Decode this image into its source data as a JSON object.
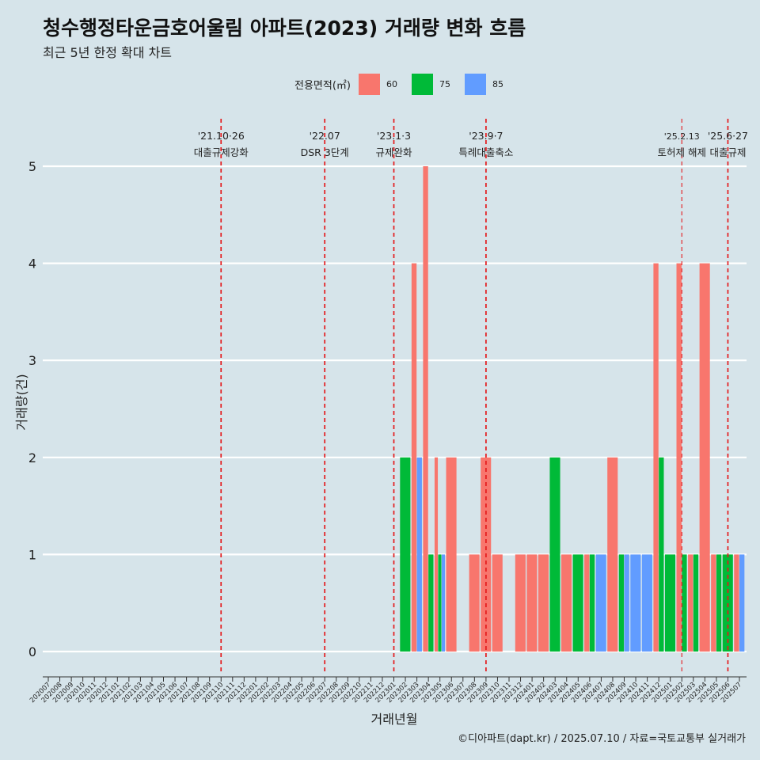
{
  "chart_data": {
    "type": "bar",
    "title": "청수행정타운금호어울림 아파트(2023) 거래량 변화 흐름",
    "subtitle": "최근 5년 한정 확대 차트",
    "xlabel": "거래년월",
    "ylabel": "거래량(건)",
    "ylim": [
      0,
      5
    ],
    "yticks": [
      "0",
      "1",
      "2",
      "3",
      "4",
      "5"
    ],
    "legend": {
      "title": "전용면적(㎡)",
      "position": "top",
      "items": [
        {
          "label": "60",
          "color": "#f8766d"
        },
        {
          "label": "75",
          "color": "#00ba38"
        },
        {
          "label": "85",
          "color": "#619cff"
        }
      ]
    },
    "categories": [
      "202007",
      "202008",
      "202009",
      "202010",
      "202011",
      "202012",
      "202101",
      "202102",
      "202103",
      "202104",
      "202105",
      "202106",
      "202107",
      "202108",
      "202109",
      "202110",
      "202111",
      "202112",
      "202201",
      "202202",
      "202203",
      "202204",
      "202205",
      "202206",
      "202207",
      "202208",
      "202209",
      "202210",
      "202211",
      "202212",
      "202301",
      "202302",
      "202303",
      "202304",
      "202305",
      "202306",
      "202307",
      "202308",
      "202309",
      "202310",
      "202311",
      "202312",
      "202401",
      "202402",
      "202403",
      "202404",
      "202405",
      "202406",
      "202407",
      "202408",
      "202409",
      "202410",
      "202411",
      "202412",
      "202501",
      "202502",
      "202503",
      "202504",
      "202505",
      "202506",
      "202507"
    ],
    "series": [
      {
        "name": "60",
        "color": "#f8766d",
        "values": [
          0,
          0,
          0,
          0,
          0,
          0,
          0,
          0,
          0,
          0,
          0,
          0,
          0,
          0,
          0,
          0,
          0,
          0,
          0,
          0,
          0,
          0,
          0,
          0,
          0,
          0,
          0,
          0,
          0,
          0,
          0,
          0,
          4,
          5,
          2,
          2,
          0,
          1,
          2,
          1,
          0,
          1,
          1,
          1,
          0,
          1,
          0,
          1,
          0,
          2,
          0,
          0,
          0,
          4,
          0,
          4,
          1,
          4,
          1,
          0,
          1
        ]
      },
      {
        "name": "75",
        "color": "#00ba38",
        "values": [
          0,
          0,
          0,
          0,
          0,
          0,
          0,
          0,
          0,
          0,
          0,
          0,
          0,
          0,
          0,
          0,
          0,
          0,
          0,
          0,
          0,
          0,
          0,
          0,
          0,
          0,
          0,
          0,
          0,
          0,
          0,
          2,
          0,
          1,
          1,
          0,
          0,
          0,
          0,
          0,
          0,
          0,
          0,
          0,
          2,
          0,
          1,
          1,
          0,
          0,
          1,
          0,
          0,
          2,
          1,
          1,
          1,
          0,
          1,
          1,
          0
        ]
      },
      {
        "name": "85",
        "color": "#619cff",
        "values": [
          0,
          0,
          0,
          0,
          0,
          0,
          0,
          0,
          0,
          0,
          0,
          0,
          0,
          0,
          0,
          0,
          0,
          0,
          0,
          0,
          0,
          0,
          0,
          0,
          0,
          0,
          0,
          0,
          0,
          0,
          0,
          0,
          2,
          0,
          1,
          0,
          0,
          0,
          0,
          0,
          0,
          0,
          0,
          0,
          0,
          0,
          0,
          0,
          1,
          0,
          1,
          1,
          1,
          0,
          0,
          0,
          0,
          0,
          0,
          0,
          1
        ]
      }
    ],
    "annotations": [
      {
        "x": "202110",
        "date": "'21.10·26",
        "label": "대출규제강화",
        "style": "dashed"
      },
      {
        "x": "202207",
        "date": "'22.07",
        "label": "DSR 3단계",
        "style": "dashed"
      },
      {
        "x": "202301",
        "date": "'23.1·3",
        "label": "규제완화",
        "style": "dashed"
      },
      {
        "x": "202309",
        "date": "'23.9·7",
        "label": "특례대출축소",
        "style": "dashed"
      },
      {
        "x": "202502",
        "date": "'25.2.13",
        "label": "토허제 해제",
        "style": "thin-dashed"
      },
      {
        "x": "202506",
        "date": "'25.6·27",
        "label": "대출규제",
        "style": "dashed"
      }
    ],
    "grid": true
  },
  "caption": "©디아파트(dapt.kr) / 2025.07.10 / 자료=국토교통부 실거래가"
}
